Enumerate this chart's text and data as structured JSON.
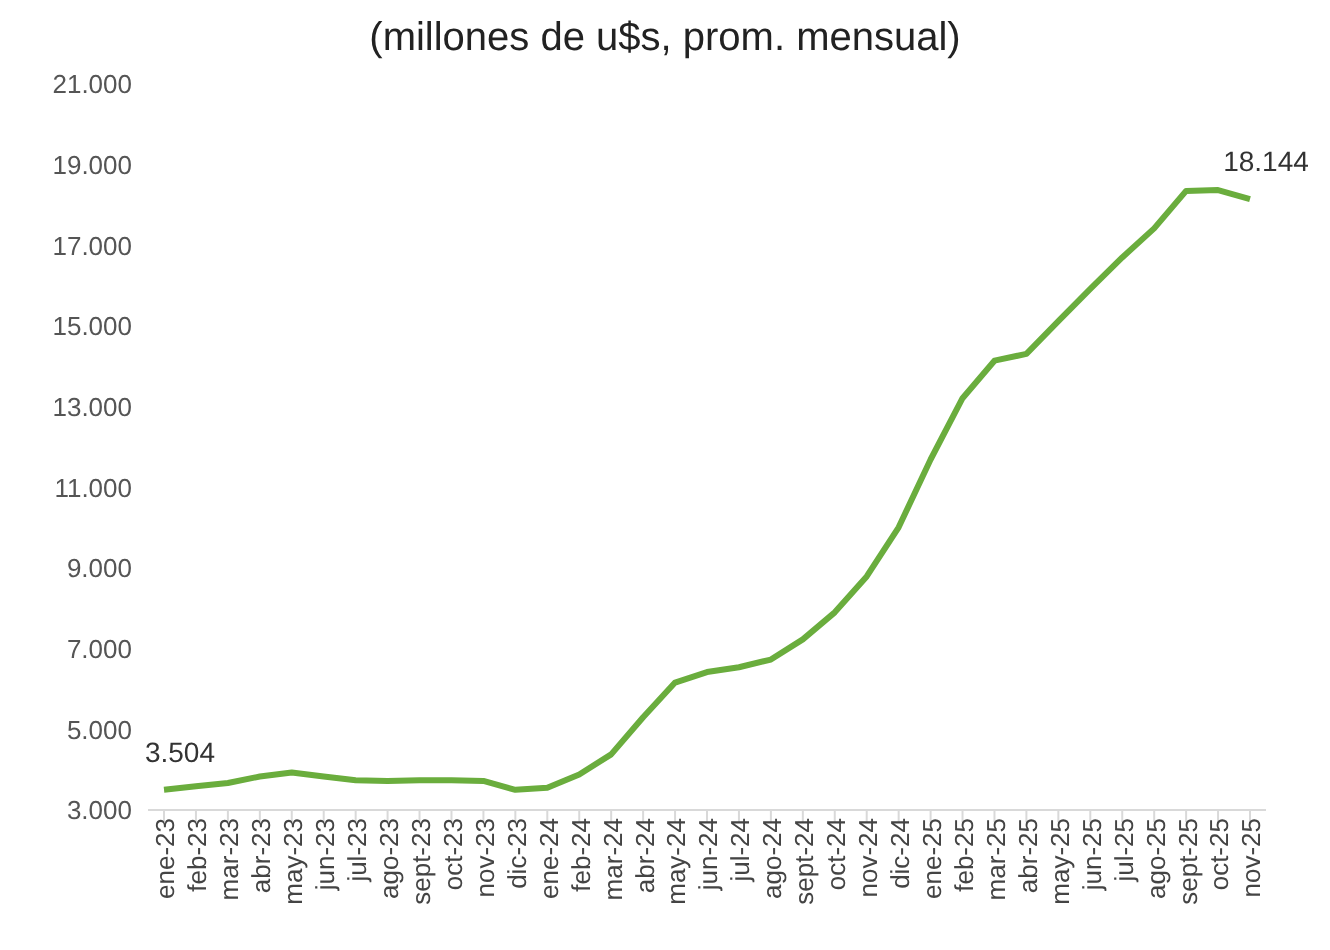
{
  "chart_data": {
    "type": "line",
    "title": "(millones de u$s, prom. mensual)",
    "categories": [
      "ene-23",
      "feb-23",
      "mar-23",
      "abr-23",
      "may-23",
      "jun-23",
      "jul-23",
      "ago-23",
      "sept-23",
      "oct-23",
      "nov-23",
      "dic-23",
      "ene-24",
      "feb-24",
      "mar-24",
      "abr-24",
      "may-24",
      "jun-24",
      "jul-24",
      "ago-24",
      "sept-24",
      "oct-24",
      "nov-24",
      "dic-24",
      "ene-25",
      "feb-25",
      "mar-25",
      "abr-25",
      "may-25",
      "jun-25",
      "jul-25",
      "ago-25",
      "sept-25",
      "oct-25",
      "nov-25"
    ],
    "series": [
      {
        "color": "#6aad3d",
        "values": [
          3504,
          3590,
          3670,
          3830,
          3930,
          3830,
          3740,
          3720,
          3740,
          3740,
          3720,
          3500,
          3550,
          3880,
          4380,
          5300,
          6160,
          6420,
          6540,
          6730,
          7230,
          7900,
          8790,
          10010,
          11690,
          13210,
          14140,
          14310,
          15120,
          15920,
          16700,
          17420,
          18350,
          18370,
          18144
        ],
        "value_labels": [
          "3.504",
          null,
          null,
          null,
          null,
          null,
          null,
          null,
          null,
          null,
          null,
          null,
          null,
          null,
          null,
          null,
          null,
          null,
          null,
          null,
          null,
          null,
          null,
          null,
          null,
          null,
          null,
          null,
          null,
          null,
          null,
          null,
          null,
          null,
          "18.144"
        ]
      }
    ],
    "ylim": [
      3000,
      21000
    ],
    "yticks": [
      {
        "value": 3000,
        "label": "3.000"
      },
      {
        "value": 5000,
        "label": "5.000"
      },
      {
        "value": 7000,
        "label": "7.000"
      },
      {
        "value": 9000,
        "label": "9.000"
      },
      {
        "value": 11000,
        "label": "11.000"
      },
      {
        "value": 13000,
        "label": "13.000"
      },
      {
        "value": 15000,
        "label": "15.000"
      },
      {
        "value": 17000,
        "label": "17.000"
      },
      {
        "value": 19000,
        "label": "19.000"
      },
      {
        "value": 21000,
        "label": "21.000"
      }
    ],
    "grid": false,
    "marker": "none",
    "line_style": "solid"
  }
}
